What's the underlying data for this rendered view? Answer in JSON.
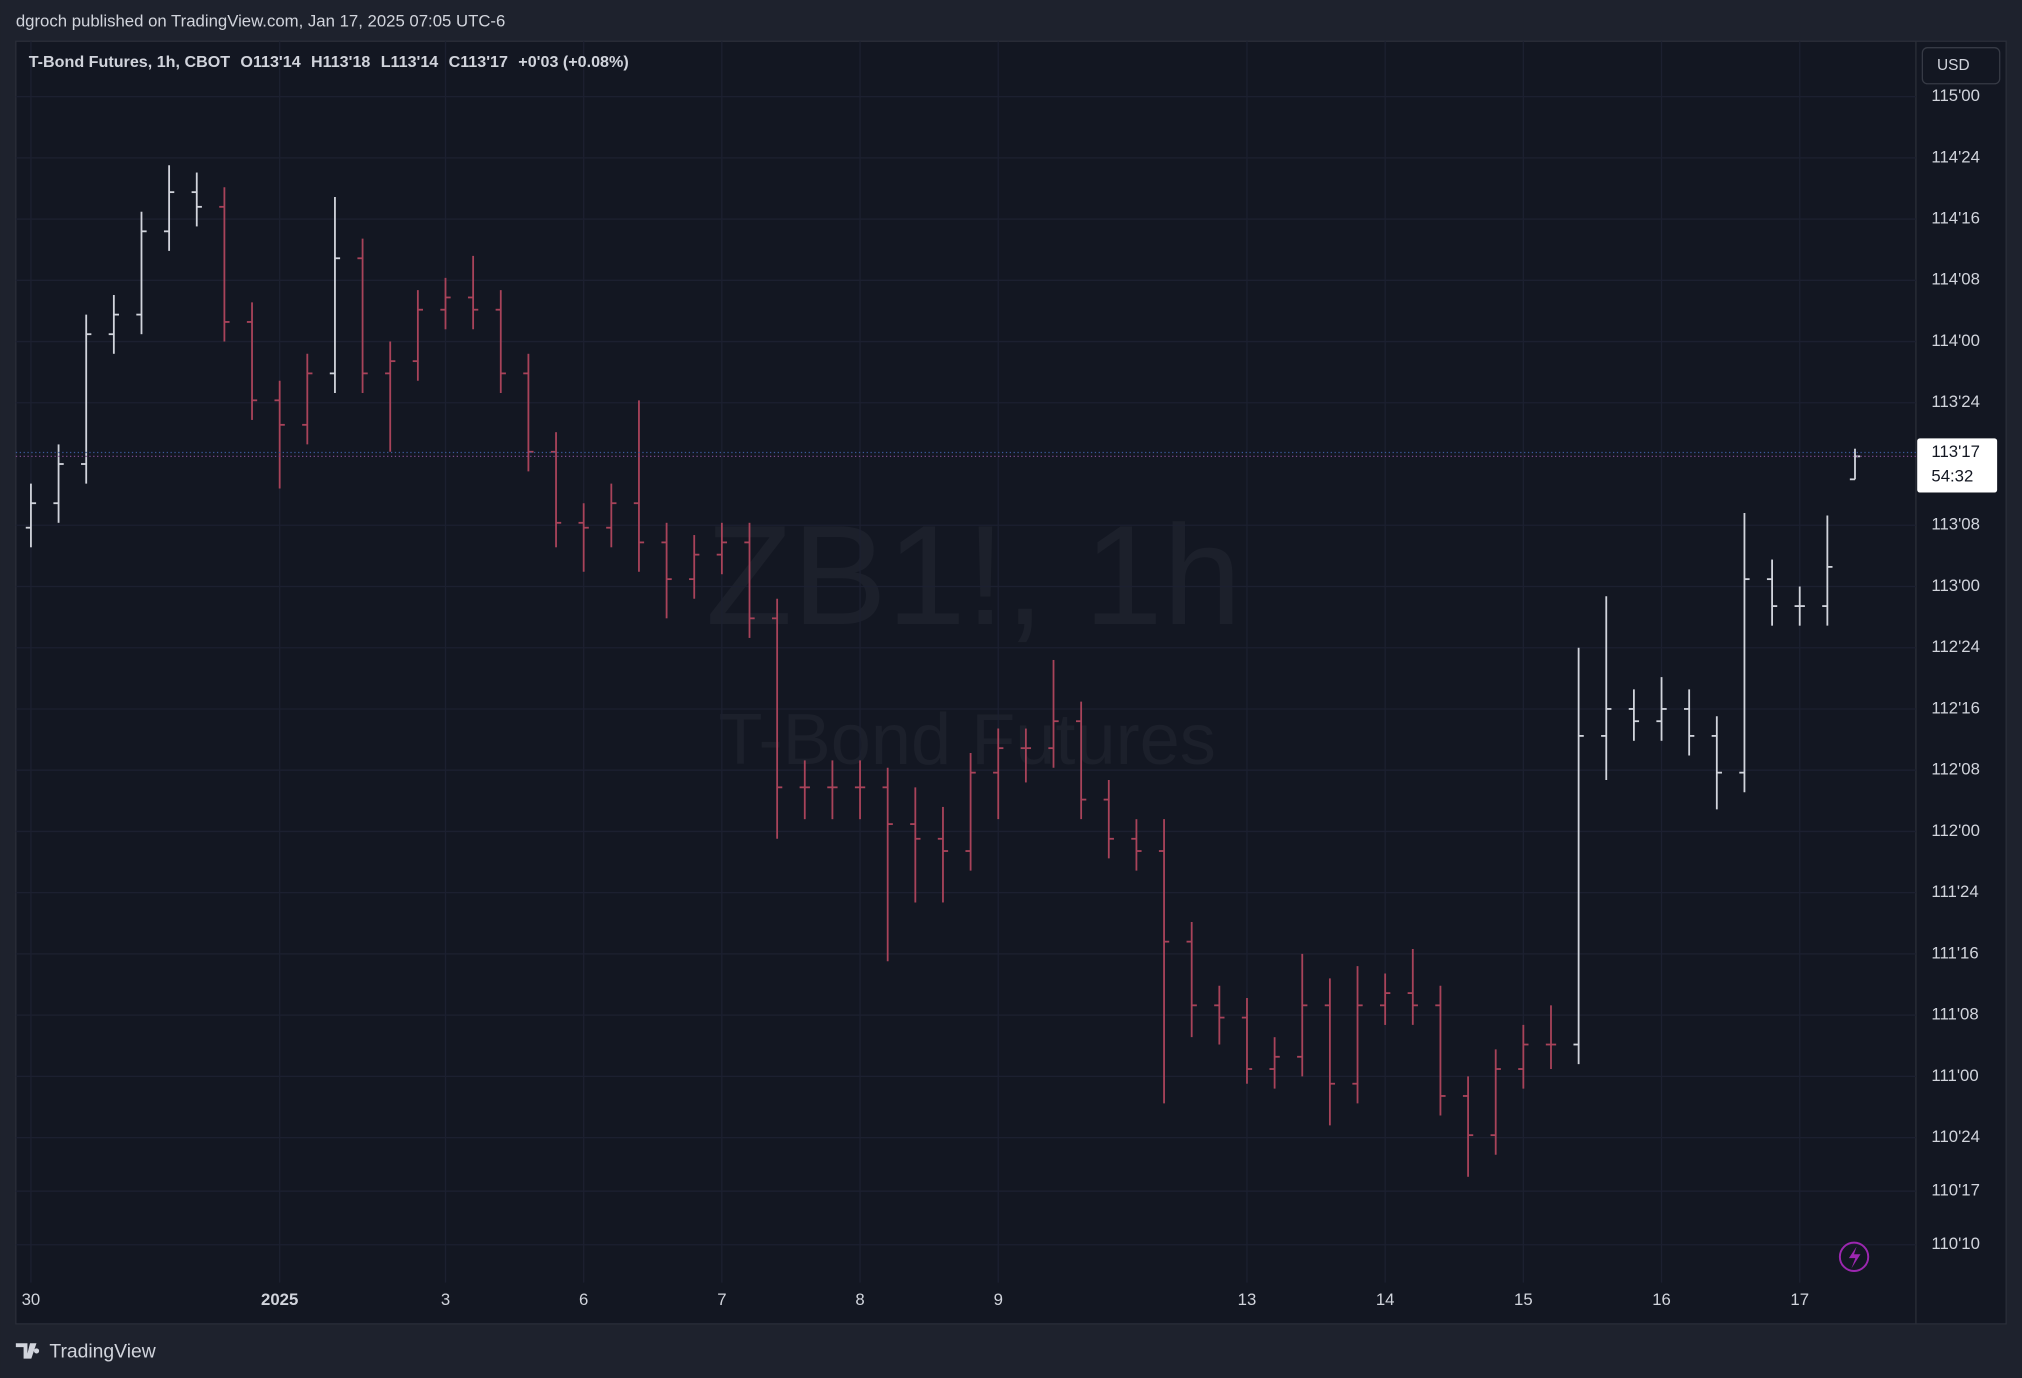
{
  "header": "dgroch published on TradingView.com, Jan 17, 2025 07:05 UTC-6",
  "footer": "TradingView",
  "chart_data": {
    "type": "ohlc",
    "legend": {
      "symbol": "T-Bond Futures, 1h, CBOT",
      "values": [
        {
          "value": 113.4375,
          "label": "O113'14"
        },
        {
          "value": 113.5625,
          "label": "H113'18"
        },
        {
          "value": 113.4375,
          "label": "L113'14"
        },
        {
          "value": 113.53125,
          "label": "C113'17"
        }
      ],
      "change": "+0'03 (+0.08%)"
    },
    "watermark": "ZB1!, 1h",
    "watermark_subtitle": "T-Bond Futures",
    "currency": "USD",
    "countdown": "54:32",
    "last_price": {
      "value": 113.53125,
      "label": "113'17"
    },
    "categories": [
      "30",
      null,
      null,
      null,
      null,
      null,
      null,
      null,
      null,
      "2025",
      null,
      null,
      null,
      null,
      null,
      "3",
      null,
      null,
      null,
      null,
      "6",
      null,
      null,
      null,
      null,
      "7",
      null,
      null,
      null,
      null,
      "8",
      null,
      null,
      null,
      null,
      "9",
      null,
      null,
      null,
      null,
      null,
      null,
      null,
      null,
      "13",
      null,
      null,
      null,
      null,
      "14",
      null,
      null,
      null,
      null,
      "15",
      null,
      null,
      null,
      null,
      "16",
      null,
      null,
      null,
      null,
      "17",
      null,
      null
    ],
    "open": [
      113.24,
      113.34,
      113.5,
      114.03,
      114.11,
      114.45,
      114.61,
      114.55,
      114.08,
      113.76,
      113.66,
      113.87,
      114.34,
      113.87,
      113.92,
      114.13,
      114.18,
      114.13,
      113.87,
      113.55,
      113.26,
      113.24,
      113.34,
      113.18,
      113.03,
      113.13,
      113.18,
      112.87,
      112.18,
      112.18,
      112.18,
      112.18,
      112.03,
      111.97,
      111.92,
      112.24,
      112.34,
      112.34,
      112.45,
      112.13,
      111.97,
      111.92,
      111.55,
      111.29,
      111.24,
      111.03,
      111.08,
      111.29,
      110.97,
      111.29,
      111.34,
      111.29,
      110.92,
      110.76,
      111.03,
      111.13,
      111.13,
      112.39,
      112.5,
      112.45,
      112.5,
      112.39,
      112.24,
      113.03,
      112.92,
      112.92,
      113.4375
    ],
    "high": [
      113.42,
      113.58,
      114.11,
      114.19,
      114.53,
      114.72,
      114.69,
      114.63,
      114.16,
      113.84,
      113.95,
      114.59,
      114.42,
      114.0,
      114.21,
      114.26,
      114.35,
      114.21,
      113.95,
      113.63,
      113.34,
      113.42,
      113.76,
      113.26,
      113.21,
      113.26,
      113.26,
      112.95,
      112.29,
      112.29,
      112.29,
      112.26,
      112.18,
      112.1,
      112.32,
      112.42,
      112.42,
      112.7,
      112.53,
      112.21,
      112.05,
      112.05,
      111.63,
      111.37,
      111.32,
      111.16,
      111.5,
      111.4,
      111.45,
      111.42,
      111.52,
      111.37,
      111.0,
      111.11,
      111.21,
      111.29,
      112.75,
      112.96,
      112.58,
      112.63,
      112.58,
      112.47,
      113.3,
      113.11,
      113.0,
      113.29,
      113.5625
    ],
    "low": [
      113.16,
      113.26,
      113.42,
      113.95,
      114.03,
      114.37,
      114.47,
      114.0,
      113.68,
      113.4,
      113.58,
      113.79,
      113.79,
      113.55,
      113.84,
      114.05,
      114.05,
      113.79,
      113.47,
      113.16,
      113.06,
      113.16,
      113.06,
      112.87,
      112.95,
      113.05,
      112.79,
      111.97,
      112.05,
      112.05,
      112.05,
      111.47,
      111.71,
      111.71,
      111.84,
      112.05,
      112.2,
      112.26,
      112.05,
      111.89,
      111.84,
      110.89,
      111.16,
      111.13,
      110.97,
      110.95,
      111.0,
      110.8,
      110.89,
      111.21,
      111.21,
      110.84,
      110.59,
      110.68,
      110.95,
      111.03,
      111.05,
      112.21,
      112.37,
      112.37,
      112.31,
      112.09,
      112.16,
      112.84,
      112.84,
      112.84,
      113.4375
    ],
    "close": [
      113.34,
      113.5,
      114.03,
      114.11,
      114.45,
      114.61,
      114.55,
      114.08,
      113.76,
      113.66,
      113.87,
      114.34,
      113.87,
      113.92,
      114.13,
      114.18,
      114.13,
      113.87,
      113.55,
      113.26,
      113.24,
      113.34,
      113.18,
      113.03,
      113.13,
      113.18,
      112.87,
      112.18,
      112.18,
      112.18,
      112.18,
      112.03,
      111.97,
      111.92,
      112.24,
      112.34,
      112.34,
      112.45,
      112.13,
      111.97,
      111.92,
      111.55,
      111.29,
      111.24,
      111.03,
      111.08,
      111.29,
      110.97,
      111.29,
      111.34,
      111.29,
      110.92,
      110.76,
      111.03,
      111.13,
      111.13,
      112.39,
      112.5,
      112.45,
      112.5,
      112.39,
      112.24,
      113.03,
      112.92,
      112.92,
      113.08,
      113.53125
    ],
    "bar_colors": [
      "#d1d4dc",
      "#d1d4dc",
      "#d1d4dc",
      "#d1d4dc",
      "#d1d4dc",
      "#d1d4dc",
      "#d1d4dc",
      "#a8435a",
      "#a8435a",
      "#a8435a",
      "#a8435a",
      "#d1d4dc",
      "#a8435a",
      "#a8435a",
      "#a8435a",
      "#a8435a",
      "#a8435a",
      "#a8435a",
      "#a8435a",
      "#a8435a",
      "#a8435a",
      "#a8435a",
      "#a8435a",
      "#a8435a",
      "#a8435a",
      "#a8435a",
      "#a8435a",
      "#a8435a",
      "#a8435a",
      "#a8435a",
      "#a8435a",
      "#a8435a",
      "#a8435a",
      "#a8435a",
      "#a8435a",
      "#a8435a",
      "#a8435a",
      "#a8435a",
      "#a8435a",
      "#a8435a",
      "#a8435a",
      "#a8435a",
      "#a8435a",
      "#a8435a",
      "#a8435a",
      "#a8435a",
      "#a8435a",
      "#a8435a",
      "#a8435a",
      "#a8435a",
      "#a8435a",
      "#a8435a",
      "#a8435a",
      "#a8435a",
      "#a8435a",
      "#a8435a",
      "#d1d4dc",
      "#d1d4dc",
      "#d1d4dc",
      "#d1d4dc",
      "#d1d4dc",
      "#d1d4dc",
      "#d1d4dc",
      "#d1d4dc",
      "#d1d4dc",
      "#d1d4dc",
      "#d1d4dc"
    ],
    "ylim": [
      110.158,
      115.226
    ],
    "yticks": [
      {
        "value": 115,
        "label": "115'00"
      },
      {
        "value": 114.75,
        "label": "114'24"
      },
      {
        "value": 114.5,
        "label": "114'16"
      },
      {
        "value": 114.25,
        "label": "114'08"
      },
      {
        "value": 114,
        "label": "114'00"
      },
      {
        "value": 113.75,
        "label": "113'24"
      },
      {
        "value": 113.25,
        "label": "113'08"
      },
      {
        "value": 113,
        "label": "113'00"
      },
      {
        "value": 112.75,
        "label": "112'24"
      },
      {
        "value": 112.5,
        "label": "112'16"
      },
      {
        "value": 112.25,
        "label": "112'08"
      },
      {
        "value": 112,
        "label": "112'00"
      },
      {
        "value": 111.75,
        "label": "111'24"
      },
      {
        "value": 111.5,
        "label": "111'16"
      },
      {
        "value": 111.25,
        "label": "111'08"
      },
      {
        "value": 111,
        "label": "111'00"
      },
      {
        "value": 110.75,
        "label": "110'24"
      },
      {
        "value": 110.53125,
        "label": "110'17"
      },
      {
        "value": 110.3125,
        "label": "110'10"
      }
    ],
    "grid": true
  }
}
